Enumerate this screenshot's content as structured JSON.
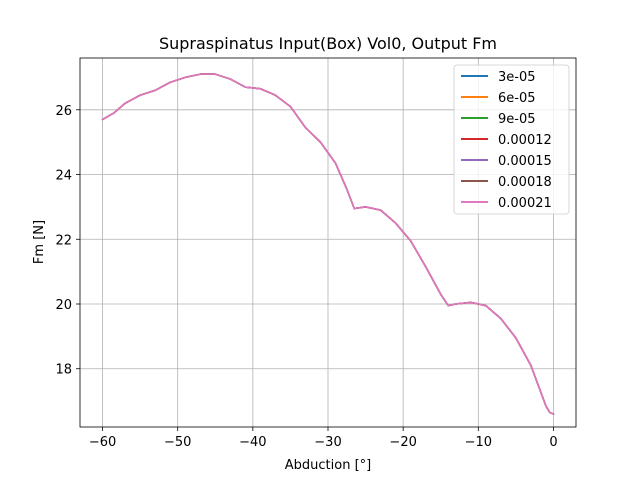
{
  "chart_data": {
    "type": "line",
    "title": "Supraspinatus Input(Box) Vol0, Output Fm",
    "xlabel": "Abduction [°]",
    "ylabel": "Fm [N]",
    "xlim": [
      -63,
      3
    ],
    "ylim": [
      16.2,
      27.6
    ],
    "xticks": [
      -60,
      -50,
      -40,
      -30,
      -20,
      -10,
      0
    ],
    "yticks": [
      18,
      20,
      22,
      24,
      26
    ],
    "grid": true,
    "legend_position": "top-right",
    "x": [
      -60,
      -58.5,
      -57,
      -55,
      -53,
      -51,
      -49,
      -47,
      -45,
      -43,
      -41,
      -39,
      -37,
      -35,
      -33,
      -31,
      -29,
      -27.5,
      -26.5,
      -25,
      -23,
      -21,
      -19,
      -17,
      -15,
      -14,
      -13,
      -11,
      -9,
      -7,
      -5,
      -3,
      -1,
      -0.5,
      0
    ],
    "y_shared": [
      25.7,
      25.9,
      26.2,
      26.45,
      26.6,
      26.85,
      27.0,
      27.1,
      27.1,
      26.95,
      26.7,
      26.65,
      26.45,
      26.1,
      25.45,
      25.0,
      24.35,
      23.55,
      22.95,
      23.0,
      22.9,
      22.5,
      21.95,
      21.15,
      20.3,
      19.95,
      20.0,
      20.05,
      19.95,
      19.55,
      18.95,
      18.1,
      16.85,
      16.65,
      16.6
    ],
    "series": [
      {
        "name": "3e-05",
        "color": "#1f77b4"
      },
      {
        "name": "6e-05",
        "color": "#ff7f0e"
      },
      {
        "name": "9e-05",
        "color": "#2ca02c"
      },
      {
        "name": "0.00012",
        "color": "#d62728"
      },
      {
        "name": "0.00015",
        "color": "#9467bd"
      },
      {
        "name": "0.00018",
        "color": "#8c564b"
      },
      {
        "name": "0.00021",
        "color": "#e377c2"
      }
    ]
  }
}
